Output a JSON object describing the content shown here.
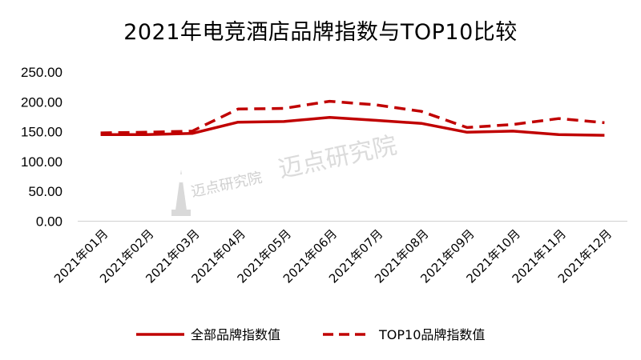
{
  "chart_data": {
    "type": "line",
    "title": "2021年电竞酒店品牌指数与TOP10比较",
    "categories": [
      "2021年01月",
      "2021年02月",
      "2021年03月",
      "2021年04月",
      "2021年05月",
      "2021年06月",
      "2021年07月",
      "2021年08月",
      "2021年09月",
      "2021年10月",
      "2021年11月",
      "2021年12月"
    ],
    "series": [
      {
        "name": "全部品牌指数值",
        "style": "solid",
        "color": "#c00000",
        "values": [
          145,
          145,
          147,
          166,
          167,
          174,
          169,
          164,
          149,
          151,
          145,
          144
        ]
      },
      {
        "name": "TOP10品牌指数值",
        "style": "dashed",
        "color": "#c00000",
        "values": [
          148,
          149,
          151,
          188,
          189,
          201,
          195,
          184,
          157,
          162,
          172,
          165
        ]
      }
    ],
    "ylim": [
      0,
      250
    ],
    "yticks": [
      "0.00",
      "50.00",
      "100.00",
      "150.00",
      "200.00",
      "250.00"
    ],
    "ytick_values": [
      0,
      50,
      100,
      150,
      200,
      250
    ],
    "grid": false,
    "legend_position": "bottom",
    "xlabel": "",
    "ylabel": ""
  },
  "watermark": {
    "large_text": "迈点研究院",
    "small_text": "迈点研究院"
  }
}
